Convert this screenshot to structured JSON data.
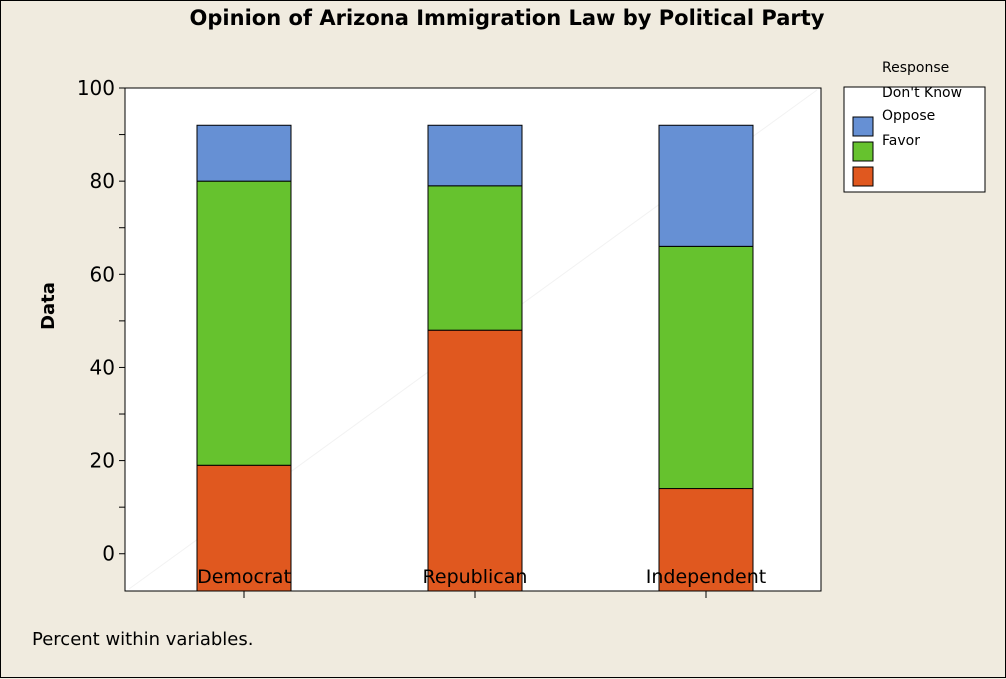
{
  "chart_data": {
    "type": "bar",
    "stacked": true,
    "title": "Opinion of Arizona Immigration Law by Political Party",
    "xlabel": "",
    "ylabel": "Data",
    "categories": [
      "Democrat",
      "Republican",
      "Independent"
    ],
    "series": [
      {
        "key": "s1",
        "values": [
          27,
          56,
          22
        ],
        "color": "#e0581f"
      },
      {
        "key": "s2",
        "values": [
          61,
          31,
          52
        ],
        "color": "#66c22e"
      },
      {
        "key": "s3",
        "values": [
          4,
          5,
          18
        ],
        "color": "#6690d4"
      }
    ],
    "ylim": [
      -8,
      100
    ],
    "yticks": [
      0,
      20,
      40,
      60,
      80,
      100
    ],
    "grid": false,
    "legend": {
      "title": "Response",
      "labels": [
        "Don't Know",
        "Oppose",
        "Favor"
      ],
      "swatch_colors": [
        "#6690d4",
        "#66c22e",
        "#e0581f"
      ],
      "placement": "top-right"
    },
    "footnote": "Percent within variables."
  }
}
